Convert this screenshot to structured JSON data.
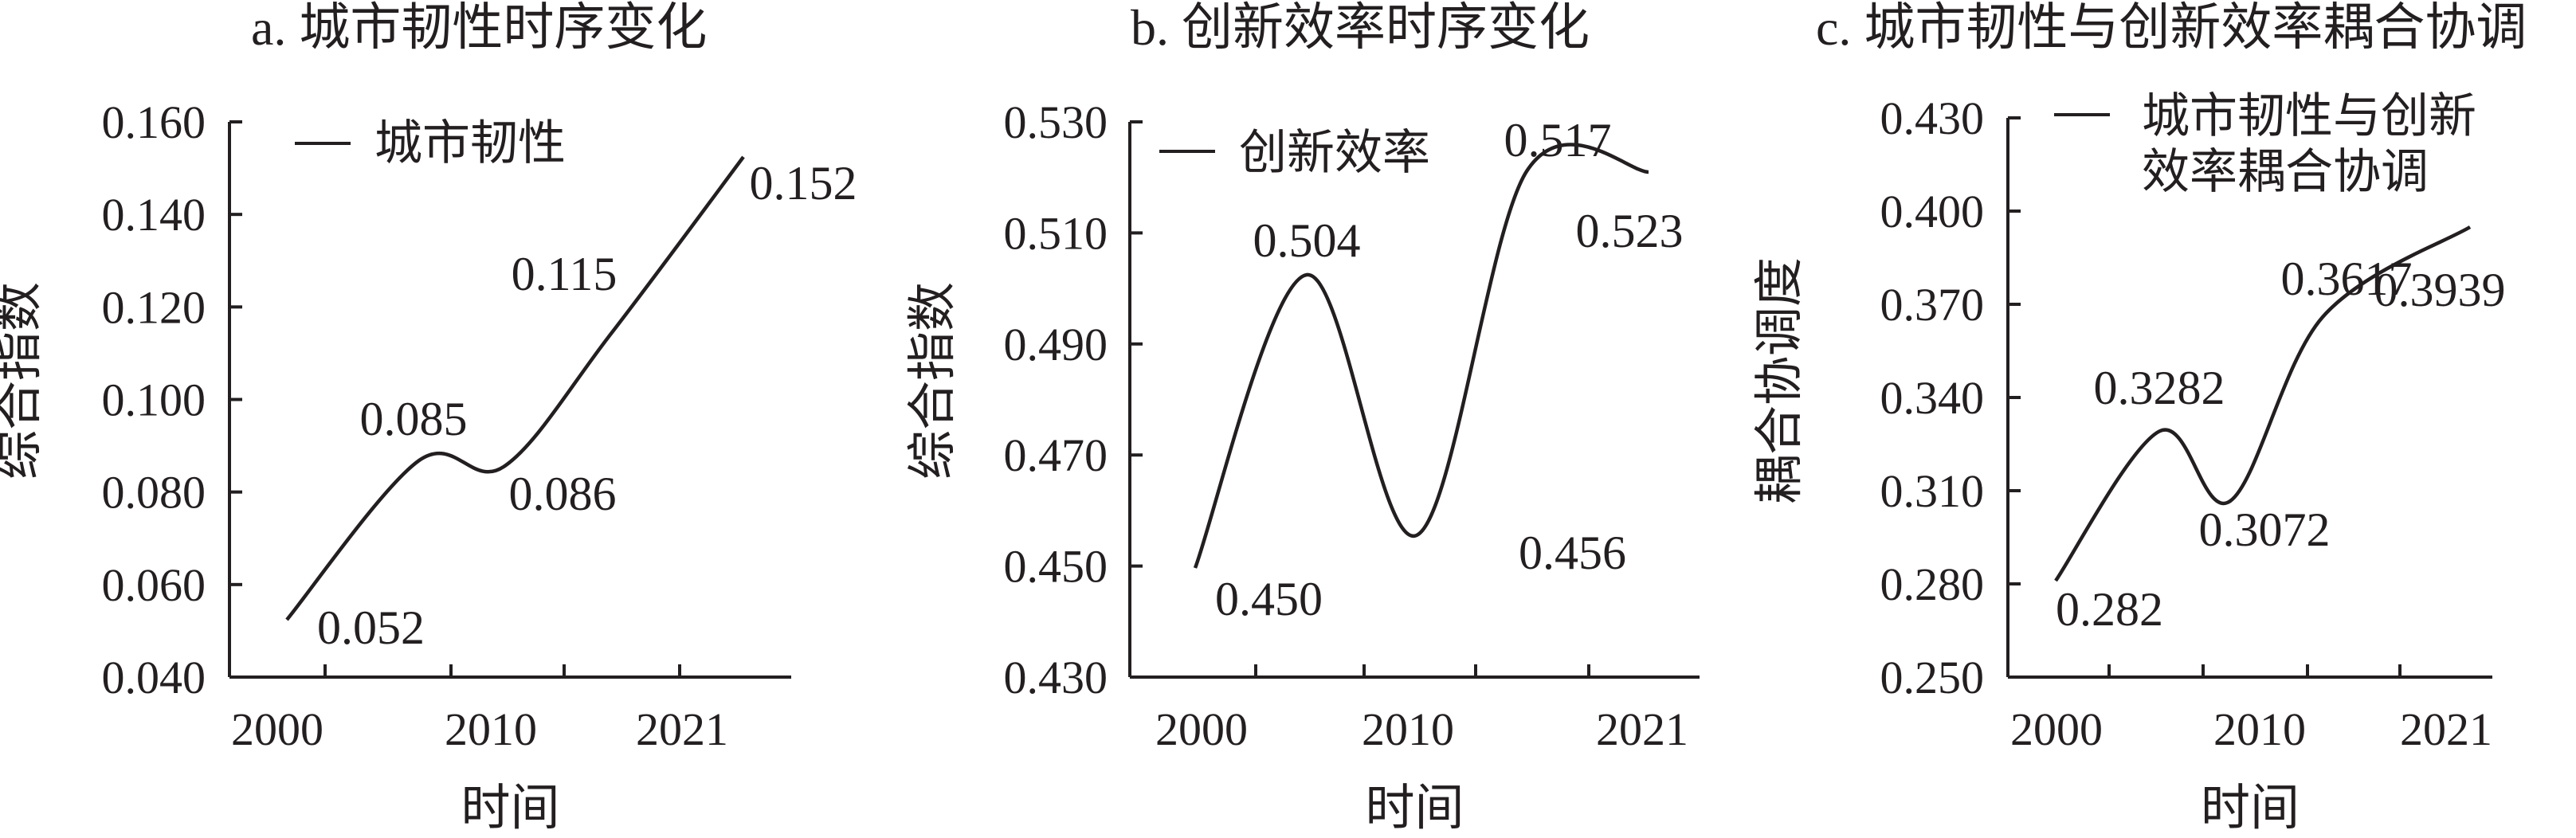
{
  "chart_data": [
    {
      "type": "line",
      "title": "a. 城市韧性时序变化",
      "xlabel": "时间",
      "ylabel": "综合指数",
      "xticks": [
        "2000",
        "2010",
        "2021"
      ],
      "yticks": [
        "0.040",
        "0.060",
        "0.080",
        "0.100",
        "0.120",
        "0.140",
        "0.160"
      ],
      "ylim": [
        0.04,
        0.16
      ],
      "legend": "top-left",
      "series": [
        {
          "name": "城市韧性",
          "x": [
            2000,
            2005,
            2010,
            2015,
            2021
          ],
          "y": [
            0.052,
            0.085,
            0.086,
            0.115,
            0.152
          ],
          "labels": [
            "0.052",
            "0.085",
            "0.086",
            "0.115",
            "0.152"
          ]
        }
      ]
    },
    {
      "type": "line",
      "title": "b. 创新效率时序变化",
      "xlabel": "时间",
      "ylabel": "综合指数",
      "xticks": [
        "2000",
        "2010",
        "2021"
      ],
      "yticks": [
        "0.430",
        "0.450",
        "0.470",
        "0.490",
        "0.510",
        "0.530"
      ],
      "ylim": [
        0.43,
        0.53
      ],
      "legend": "top-left",
      "series": [
        {
          "name": "创新效率",
          "x": [
            2000,
            2005,
            2010,
            2015,
            2021
          ],
          "y": [
            0.45,
            0.504,
            0.456,
            0.517,
            0.523
          ],
          "labels": [
            "0.450",
            "0.504",
            "0.456",
            "0.517",
            "0.523"
          ]
        }
      ]
    },
    {
      "type": "line",
      "title": "c. 城市韧性与创新效率耦合协调",
      "xlabel": "时间",
      "ylabel": "耦合协调度",
      "xticks": [
        "2000",
        "2010",
        "2021"
      ],
      "yticks": [
        "0.250",
        "0.280",
        "0.310",
        "0.340",
        "0.370",
        "0.400",
        "0.430"
      ],
      "ylim": [
        0.25,
        0.43
      ],
      "legend": "top-left",
      "series": [
        {
          "name": "城市韧性与创新效率耦合协调",
          "name_lines": [
            "城市韧性与创新",
            "效率耦合协调"
          ],
          "x": [
            2000,
            2005,
            2010,
            2015,
            2021
          ],
          "y": [
            0.282,
            0.3282,
            0.3072,
            0.3617,
            0.3939
          ],
          "labels": [
            "0.282",
            "0.3282",
            "0.3072",
            "0.3617",
            "0.3939"
          ]
        }
      ]
    }
  ]
}
